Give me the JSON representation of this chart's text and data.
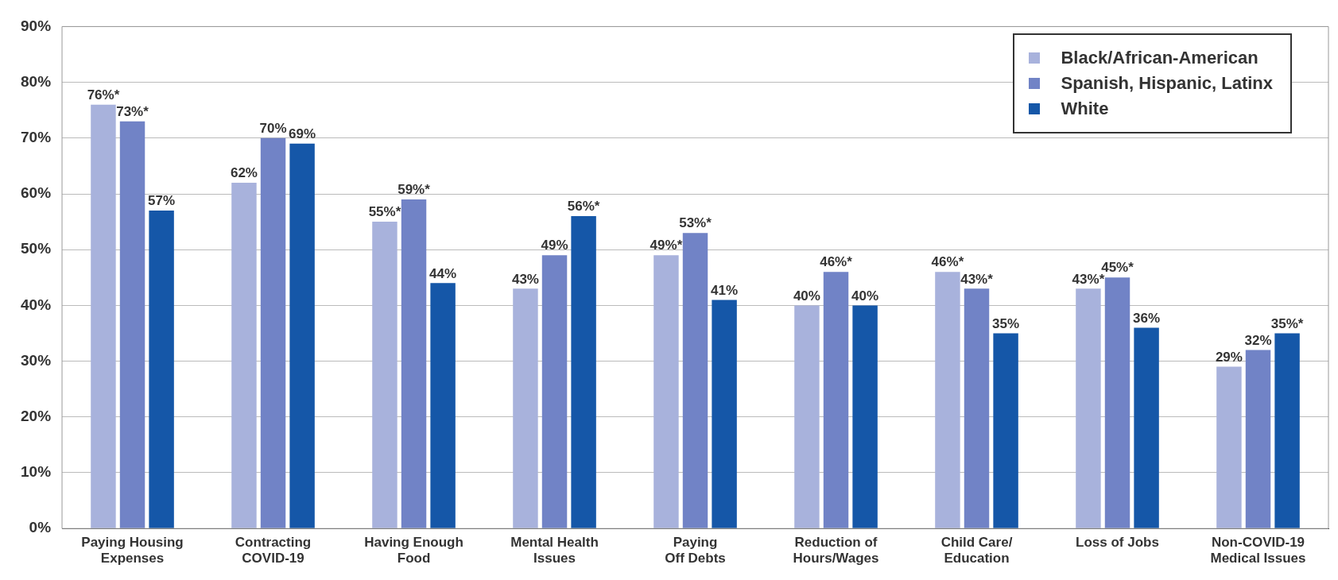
{
  "chart_data": {
    "type": "bar",
    "categories": [
      "Paying Housing\nExpenses",
      "Contracting\nCOVID-19",
      "Having Enough\nFood",
      "Mental Health\nIssues",
      "Paying\nOff Debts",
      "Reduction of\nHours/Wages",
      "Child Care/\nEducation",
      "Loss of Jobs",
      "Non-COVID-19\nMedical Issues"
    ],
    "series": [
      {
        "name": "Black/African-American",
        "color": "#a8b2dc",
        "values": [
          76,
          62,
          55,
          43,
          49,
          40,
          46,
          43,
          29
        ],
        "value_labels": [
          "76%*",
          "62%",
          "55%*",
          "43%",
          "49%*",
          "40%",
          "46%*",
          "43%*",
          "29%"
        ]
      },
      {
        "name": "Spanish, Hispanic, Latinx",
        "color": "#7183c6",
        "values": [
          73,
          70,
          59,
          49,
          53,
          46,
          43,
          45,
          32
        ],
        "value_labels": [
          "73%*",
          "70%",
          "59%*",
          "49%",
          "53%*",
          "46%*",
          "43%*",
          "45%*",
          "32%"
        ]
      },
      {
        "name": "White",
        "color": "#1557a8",
        "values": [
          57,
          69,
          44,
          56,
          41,
          40,
          35,
          36,
          35
        ],
        "value_labels": [
          "57%",
          "69%",
          "44%",
          "56%*",
          "41%",
          "40%",
          "35%",
          "36%",
          "35%*"
        ]
      }
    ],
    "ylim": [
      0,
      90
    ],
    "yticks": [
      {
        "value": 0,
        "label": "0%"
      },
      {
        "value": 10,
        "label": "10%"
      },
      {
        "value": 20,
        "label": "20%"
      },
      {
        "value": 30,
        "label": "30%"
      },
      {
        "value": 40,
        "label": "40%"
      },
      {
        "value": 50,
        "label": "50%"
      },
      {
        "value": 60,
        "label": "60%"
      },
      {
        "value": 70,
        "label": "70%"
      },
      {
        "value": 80,
        "label": "80%"
      },
      {
        "value": 90,
        "label": "90%"
      }
    ],
    "grid": "y",
    "legend": "top right"
  }
}
